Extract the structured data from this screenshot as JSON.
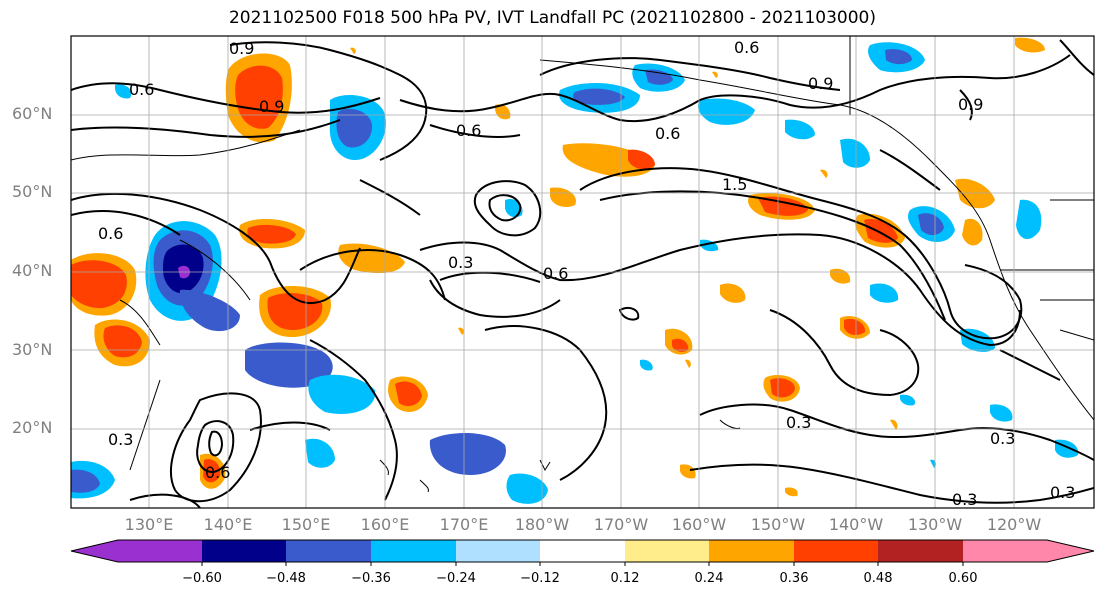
{
  "title": "2021102500 F018 500 hPa PV, IVT Landfall PC (2021102800 - 2021103000)",
  "map": {
    "lat_labels": [
      "20°N",
      "30°N",
      "40°N",
      "50°N",
      "60°N"
    ],
    "lon_labels": [
      "130°E",
      "140°E",
      "150°E",
      "160°E",
      "170°E",
      "180°W",
      "170°W",
      "160°W",
      "150°W",
      "140°W",
      "130°W",
      "120°W"
    ],
    "contour_labels": [
      "0.9",
      "0.9",
      "0.6",
      "0.6",
      "0.9",
      "0.6",
      "1.5",
      "0.6",
      "0.6",
      "0.3",
      "0.6",
      "0.3",
      "0.3",
      "0.3",
      "0.3",
      "0.3",
      "0.6",
      "0.9"
    ],
    "grid_color": "#a9a9a9",
    "coastline_color": "#000000"
  },
  "colorbar": {
    "colors": [
      "#9b30d0",
      "#00008b",
      "#3a5bcb",
      "#00bfff",
      "#b0e0ff",
      "#ffffff",
      "#ffec8b",
      "#ffa500",
      "#ff4000",
      "#b22222",
      "#ff88aa"
    ],
    "tick_labels": [
      "−0.60",
      "−0.48",
      "−0.36",
      "−0.24",
      "−0.12",
      "0.12",
      "0.24",
      "0.36",
      "0.48",
      "0.60"
    ]
  }
}
